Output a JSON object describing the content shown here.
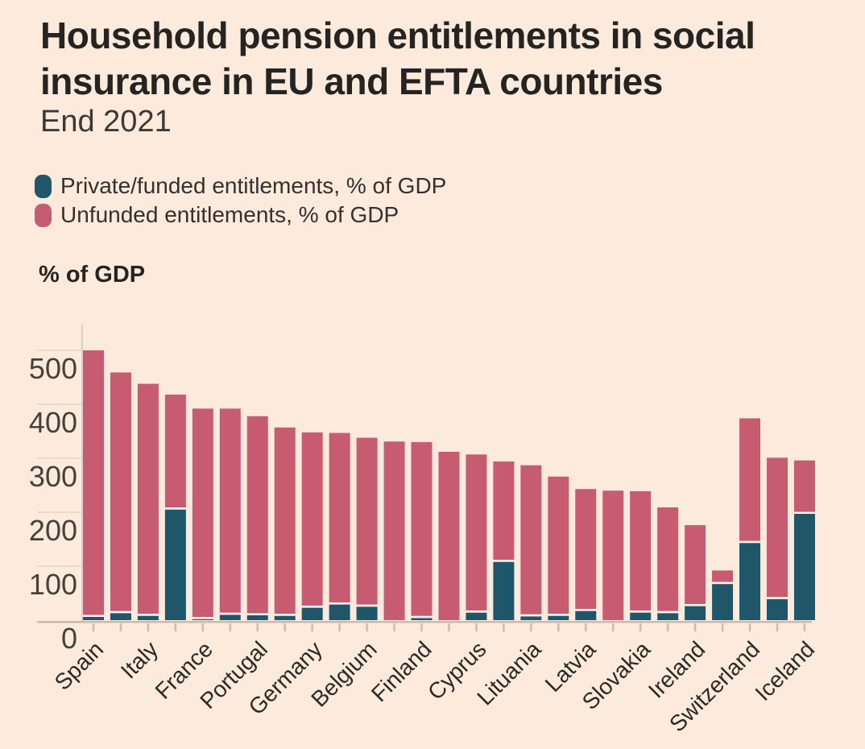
{
  "header": {
    "title_lines": [
      "Household pension entitlements in social",
      "insurance in EU and EFTA countries"
    ],
    "subtitle": "End 2021"
  },
  "legend": {
    "items": [
      {
        "label": "Private/funded entitlements, % of GDP",
        "color": "#20566a"
      },
      {
        "label": "Unfunded entitlements, % of GDP",
        "color": "#c75b72"
      }
    ]
  },
  "axis_title": "% of GDP",
  "colors": {
    "background": "#fcebdd",
    "funded": "#20566a",
    "unfunded": "#c75b72",
    "grid": "#ead9c9",
    "axis_line": "#ddcfc1",
    "baseline": "#c7bbb0",
    "tick": "#c9bdb2",
    "y_label_text": "#45413c",
    "x_label_text": "#2b2926",
    "separator": "#f7f3ee"
  },
  "chart_data": {
    "type": "bar",
    "stacked": true,
    "title": "Household pension entitlements in social insurance in EU and EFTA countries",
    "subtitle": "End 2021",
    "ylabel": "% of GDP",
    "xlabel": "",
    "ylim": [
      0,
      540
    ],
    "y_ticks": [
      0,
      100,
      200,
      300,
      400,
      500
    ],
    "grid": "y-left-stubs",
    "legend_position": "top-left",
    "categories": [
      "Spain",
      "",
      "Italy",
      "",
      "France",
      "",
      "Portugal",
      "",
      "Germany",
      "",
      "Belgium",
      "",
      "Finland",
      "",
      "Cyprus",
      "",
      "Lituania",
      "",
      "Latvia",
      "",
      "Slovakia",
      "",
      "Ireland",
      "",
      "Switzerland",
      "",
      "Iceland"
    ],
    "series": [
      {
        "name": "Private/funded entitlements, % of GDP",
        "color": "#20566a",
        "values": [
          6,
          13,
          8,
          205,
          2,
          10,
          9,
          8,
          23,
          29,
          25,
          0,
          4,
          0,
          14,
          108,
          7,
          8,
          17,
          0,
          14,
          13,
          26,
          67,
          143,
          39,
          197
        ]
      },
      {
        "name": "Unfunded entitlements, % of GDP",
        "color": "#c75b72",
        "values": [
          494,
          446,
          430,
          213,
          390,
          382,
          369,
          349,
          325,
          318,
          313,
          331,
          326,
          312,
          293,
          186,
          280,
          258,
          226,
          240,
          225,
          196,
          150,
          25,
          231,
          262,
          99
        ]
      }
    ],
    "totals": [
      500,
      459,
      438,
      418,
      392,
      392,
      378,
      357,
      348,
      347,
      338,
      331,
      330,
      312,
      307,
      294,
      287,
      266,
      243,
      240,
      239,
      209,
      176,
      92,
      374,
      301,
      296
    ]
  }
}
